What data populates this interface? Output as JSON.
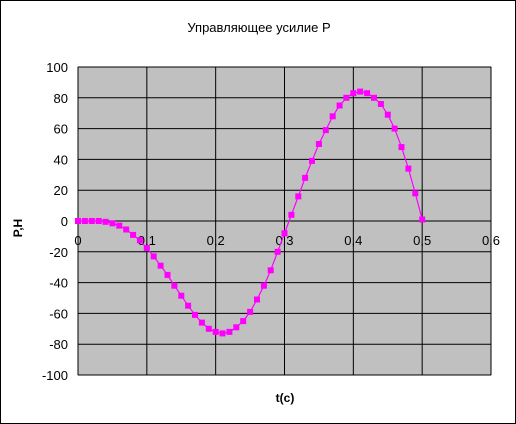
{
  "chart_data": {
    "type": "scatter",
    "title": "Управляющее усилие P",
    "xlabel": "t(c)",
    "ylabel": "P,Н",
    "xlim": [
      0,
      0.6
    ],
    "ylim": [
      -100,
      100
    ],
    "x_ticks": [
      "0",
      "0,1",
      "0,2",
      "0,3",
      "0,4",
      "0,5",
      "0,6"
    ],
    "y_ticks": [
      "100",
      "80",
      "60",
      "40",
      "20",
      "0",
      "-20",
      "-40",
      "-60",
      "-80",
      "-100"
    ],
    "grid": true,
    "plot_background": "#c0c0c0",
    "series": [
      {
        "color": "#ff00ff",
        "marker": "square",
        "x": [
          0,
          0.01,
          0.02,
          0.03,
          0.04,
          0.05,
          0.06,
          0.07,
          0.08,
          0.09,
          0.1,
          0.11,
          0.12,
          0.13,
          0.14,
          0.15,
          0.16,
          0.17,
          0.18,
          0.19,
          0.2,
          0.21,
          0.22,
          0.23,
          0.24,
          0.25,
          0.26,
          0.27,
          0.28,
          0.29,
          0.3,
          0.31,
          0.32,
          0.33,
          0.34,
          0.35,
          0.36,
          0.37,
          0.38,
          0.39,
          0.4,
          0.41,
          0.42,
          0.43,
          0.44,
          0.45,
          0.46,
          0.47,
          0.48,
          0.49,
          0.5
        ],
        "y": [
          0,
          0,
          0,
          0,
          -0.5,
          -1.5,
          -3,
          -5.5,
          -9,
          -12.5,
          -17.5,
          -23,
          -29,
          -35,
          -42,
          -48.5,
          -55,
          -61,
          -66,
          -70,
          -72,
          -73,
          -72,
          -69,
          -65,
          -59,
          -51,
          -42,
          -32,
          -20,
          -8,
          4,
          16,
          28,
          39,
          50,
          59,
          68,
          75,
          80,
          83,
          84,
          83,
          80,
          76,
          69,
          60,
          48,
          34,
          18,
          1
        ]
      }
    ]
  }
}
